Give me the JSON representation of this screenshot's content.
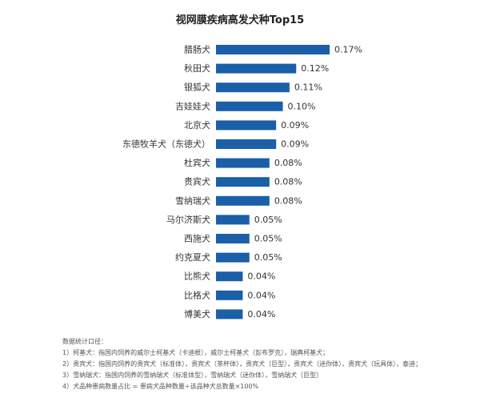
{
  "chart_data": {
    "type": "bar",
    "orientation": "horizontal",
    "title": "视网膜疾病高发犬种Top15",
    "categories": [
      "腊肠犬",
      "秋田犬",
      "银狐犬",
      "吉娃娃犬",
      "北京犬",
      "东德牧羊犬（东德犬）",
      "杜宾犬",
      "贵宾犬",
      "雪纳瑞犬",
      "马尔济斯犬",
      "西施犬",
      "约克夏犬",
      "比熊犬",
      "比格犬",
      "博美犬"
    ],
    "values": [
      0.17,
      0.12,
      0.11,
      0.1,
      0.09,
      0.09,
      0.08,
      0.08,
      0.08,
      0.05,
      0.05,
      0.05,
      0.04,
      0.04,
      0.04
    ],
    "value_labels": [
      "0.17%",
      "0.12%",
      "0.11%",
      "0.10%",
      "0.09%",
      "0.09%",
      "0.08%",
      "0.08%",
      "0.08%",
      "0.05%",
      "0.05%",
      "0.05%",
      "0.04%",
      "0.04%",
      "0.04%"
    ],
    "unit": "%",
    "xlim": [
      0,
      0.17
    ],
    "bar_color": "#1a5fa8",
    "grid": false,
    "legend": "none"
  },
  "notes": [
    "数据统计口径：",
    "1）柯基犬：指国内饲养的威尔士柯基犬（卡迪根），威尔士柯基犬（彭布罗克），瑞典柯基犬；",
    "2）贵宾犬：指国内饲养的贵宾犬（标准体），贵宾犬（茶杯体），贵宾犬（巨型），贵宾犬（迷你体），贵宾犬（玩具体），泰迪；",
    "3）雪纳瑞犬：指国内饲养的雪纳瑞犬（标准体型），雪纳瑞犬（迷你体），雪纳瑞犬（巨型）",
    "4）犬品种患病数量占比 = 患病犬品种数量÷该品种犬总数量×100%"
  ]
}
